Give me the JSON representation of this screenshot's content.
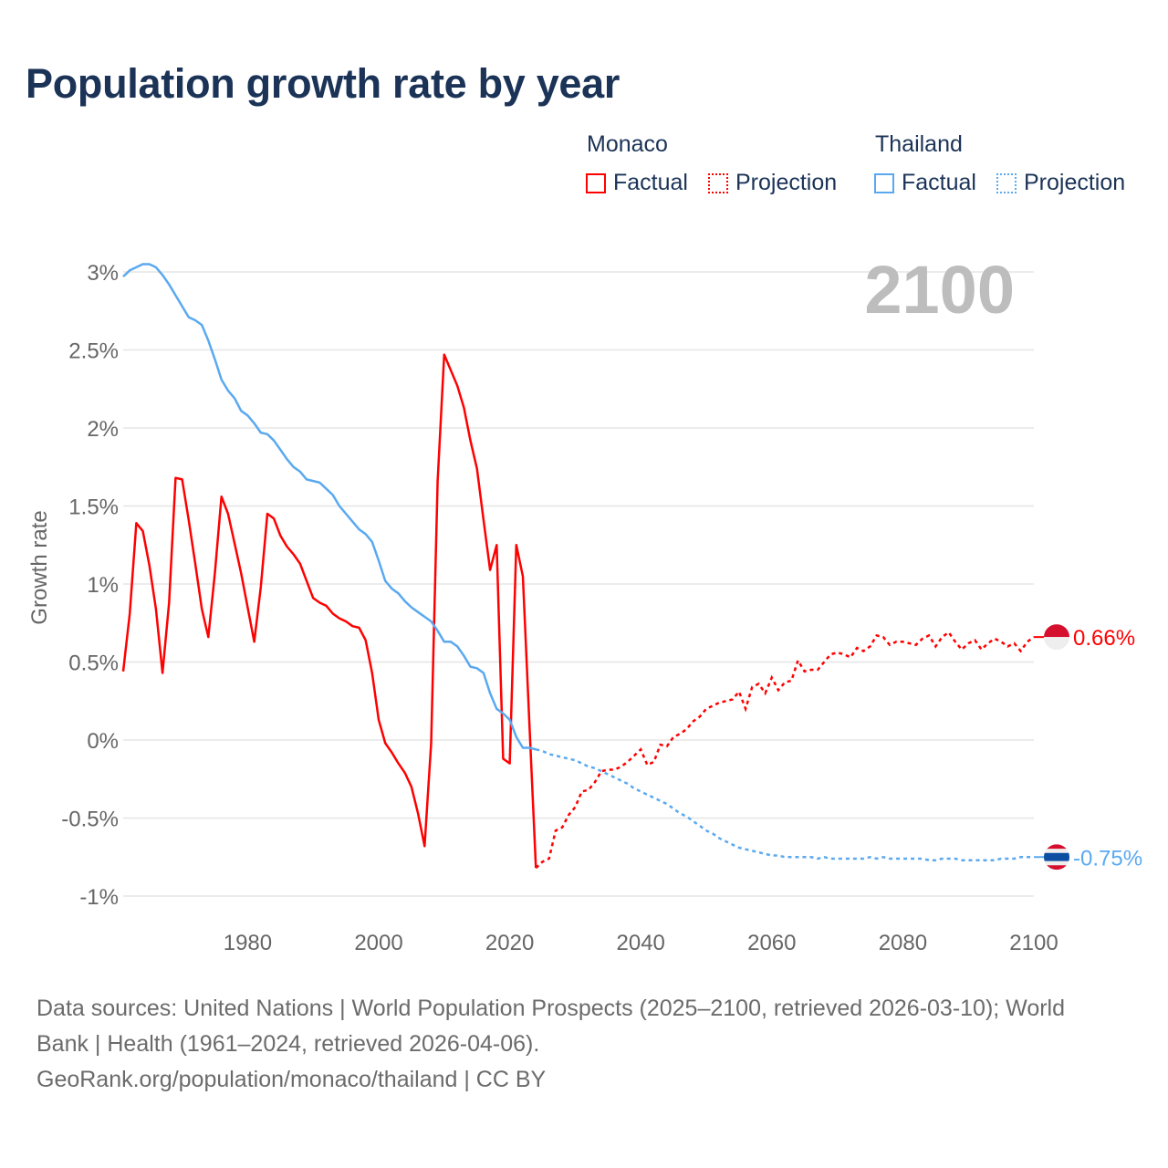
{
  "title": "Population growth rate by year",
  "legend": {
    "groups": [
      {
        "name": "Monaco",
        "factual": "Factual",
        "projection": "Projection",
        "color": "#ff0000"
      },
      {
        "name": "Thailand",
        "factual": "Factual",
        "projection": "Projection",
        "color": "#5aa9f0"
      }
    ]
  },
  "footer": {
    "line1": "Data sources: United Nations | World Population Prospects (2025–2100, retrieved 2026-03-10); World",
    "line2": "Bank | Health (1961–2024, retrieved 2026-04-06).",
    "line3": "GeoRank.org/population/monaco/thailand | CC BY"
  },
  "chart_data": {
    "type": "line",
    "title": "Population growth rate by year",
    "xlabel": "",
    "ylabel": "Growth rate",
    "year_label": "2100",
    "xlim": [
      1961,
      2100
    ],
    "ylim": [
      -1.15,
      3.05
    ],
    "x_ticks": [
      1980,
      2000,
      2020,
      2040,
      2060,
      2080,
      2100
    ],
    "y_ticks": [
      3,
      2.5,
      2,
      1.5,
      1,
      0.5,
      0,
      -0.5,
      -1
    ],
    "y_tick_labels": [
      "3%",
      "2.5%",
      "2%",
      "1.5%",
      "1%",
      "0.5%",
      "0%",
      "-0.5%",
      "-1%"
    ],
    "grid": true,
    "legend_position": "top-right",
    "series": [
      {
        "name": "Monaco",
        "color": "#ff0000",
        "end_label": "0.66%",
        "factual_start": 1961,
        "factual": [
          0.44,
          0.81,
          1.39,
          1.34,
          1.12,
          0.84,
          0.43,
          0.88,
          1.68,
          1.67,
          1.41,
          1.13,
          0.84,
          0.66,
          1.07,
          1.56,
          1.45,
          1.26,
          1.07,
          0.85,
          0.63,
          0.98,
          1.45,
          1.42,
          1.31,
          1.24,
          1.19,
          1.13,
          1.02,
          0.91,
          0.88,
          0.86,
          0.81,
          0.78,
          0.76,
          0.73,
          0.72,
          0.64,
          0.43,
          0.13,
          -0.02,
          -0.08,
          -0.15,
          -0.21,
          -0.3,
          -0.47,
          -0.68,
          -0.02,
          1.66,
          2.47,
          2.37,
          2.27,
          2.13,
          1.92,
          1.74,
          1.41,
          1.09,
          1.25,
          -0.12,
          -0.15,
          1.25,
          1.05,
          0.1,
          -0.82
        ],
        "projection_start": 2025,
        "projection": [
          -0.78,
          -0.76,
          -0.58,
          -0.56,
          -0.48,
          -0.43,
          -0.33,
          -0.32,
          -0.27,
          -0.2,
          -0.19,
          -0.19,
          -0.17,
          -0.14,
          -0.1,
          -0.06,
          -0.16,
          -0.14,
          -0.03,
          -0.04,
          0.02,
          0.04,
          0.07,
          0.12,
          0.15,
          0.2,
          0.22,
          0.24,
          0.25,
          0.26,
          0.31,
          0.2,
          0.34,
          0.36,
          0.3,
          0.4,
          0.32,
          0.37,
          0.38,
          0.51,
          0.44,
          0.45,
          0.45,
          0.5,
          0.55,
          0.56,
          0.55,
          0.53,
          0.59,
          0.57,
          0.6,
          0.67,
          0.66,
          0.61,
          0.63,
          0.63,
          0.62,
          0.61,
          0.65,
          0.67,
          0.6,
          0.66,
          0.69,
          0.63,
          0.58,
          0.62,
          0.64,
          0.58,
          0.62,
          0.65,
          0.63,
          0.6,
          0.62,
          0.57,
          0.63,
          0.66
        ]
      },
      {
        "name": "Thailand",
        "color": "#5aa9f0",
        "end_label": "-0.75%",
        "factual_start": 1961,
        "factual": [
          2.97,
          3.01,
          3.03,
          3.05,
          3.05,
          3.03,
          2.98,
          2.92,
          2.85,
          2.78,
          2.71,
          2.69,
          2.66,
          2.56,
          2.44,
          2.31,
          2.24,
          2.19,
          2.11,
          2.08,
          2.03,
          1.97,
          1.96,
          1.92,
          1.86,
          1.8,
          1.75,
          1.72,
          1.67,
          1.66,
          1.65,
          1.61,
          1.57,
          1.5,
          1.45,
          1.4,
          1.35,
          1.32,
          1.27,
          1.15,
          1.02,
          0.97,
          0.94,
          0.89,
          0.85,
          0.82,
          0.79,
          0.76,
          0.7,
          0.63,
          0.63,
          0.6,
          0.54,
          0.47,
          0.46,
          0.43,
          0.3,
          0.2,
          0.17,
          0.13,
          0.02,
          -0.05,
          -0.05,
          -0.06
        ],
        "projection_start": 2025,
        "projection": [
          -0.07,
          -0.09,
          -0.1,
          -0.11,
          -0.12,
          -0.13,
          -0.15,
          -0.17,
          -0.18,
          -0.2,
          -0.22,
          -0.24,
          -0.26,
          -0.28,
          -0.31,
          -0.33,
          -0.35,
          -0.37,
          -0.39,
          -0.41,
          -0.44,
          -0.47,
          -0.49,
          -0.52,
          -0.55,
          -0.58,
          -0.6,
          -0.63,
          -0.65,
          -0.67,
          -0.69,
          -0.7,
          -0.71,
          -0.72,
          -0.73,
          -0.74,
          -0.74,
          -0.75,
          -0.75,
          -0.75,
          -0.75,
          -0.75,
          -0.76,
          -0.75,
          -0.76,
          -0.76,
          -0.76,
          -0.76,
          -0.76,
          -0.76,
          -0.75,
          -0.76,
          -0.75,
          -0.76,
          -0.76,
          -0.76,
          -0.76,
          -0.76,
          -0.76,
          -0.77,
          -0.77,
          -0.76,
          -0.76,
          -0.76,
          -0.77,
          -0.77,
          -0.77,
          -0.77,
          -0.77,
          -0.77,
          -0.76,
          -0.76,
          -0.76,
          -0.75,
          -0.75,
          -0.75
        ]
      }
    ]
  }
}
